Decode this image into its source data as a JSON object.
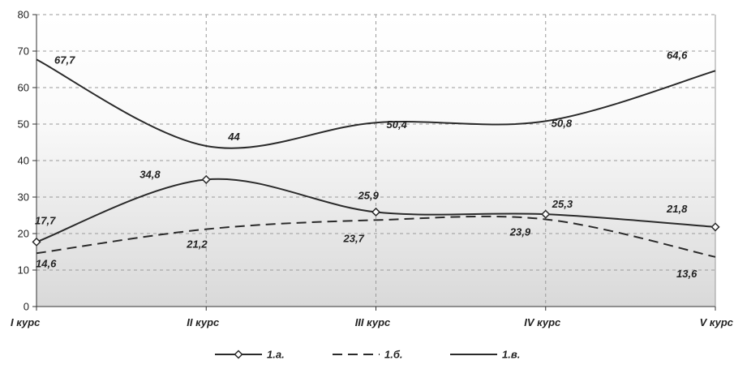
{
  "chart_data": {
    "type": "line",
    "categories": [
      "I курс",
      "II курс",
      "III курс",
      "IV курс",
      "V курс"
    ],
    "ylim": [
      0,
      80
    ],
    "yticks": [
      0,
      10,
      20,
      30,
      40,
      50,
      60,
      70,
      80
    ],
    "grid": true,
    "legend_position": "bottom",
    "series": [
      {
        "name": "1.а.",
        "values": [
          17.7,
          34.8,
          25.9,
          25.3,
          21.8
        ],
        "labels": [
          "17,7",
          "34,8",
          "25,9",
          "25,3",
          "21,8"
        ],
        "style": "solid-diamond",
        "color": "#2a2a2a"
      },
      {
        "name": "1.б.",
        "values": [
          14.6,
          21.2,
          23.7,
          23.9,
          13.6
        ],
        "labels": [
          "14,6",
          "21,2",
          "23,7",
          "23,9",
          "13,6"
        ],
        "style": "dashed",
        "color": "#2a2a2a"
      },
      {
        "name": "1.в.",
        "values": [
          67.7,
          44,
          50.4,
          50.8,
          64.6
        ],
        "labels": [
          "67,7",
          "44",
          "50,4",
          "50,8",
          "64,6"
        ],
        "style": "solid",
        "color": "#2a2a2a"
      }
    ]
  }
}
